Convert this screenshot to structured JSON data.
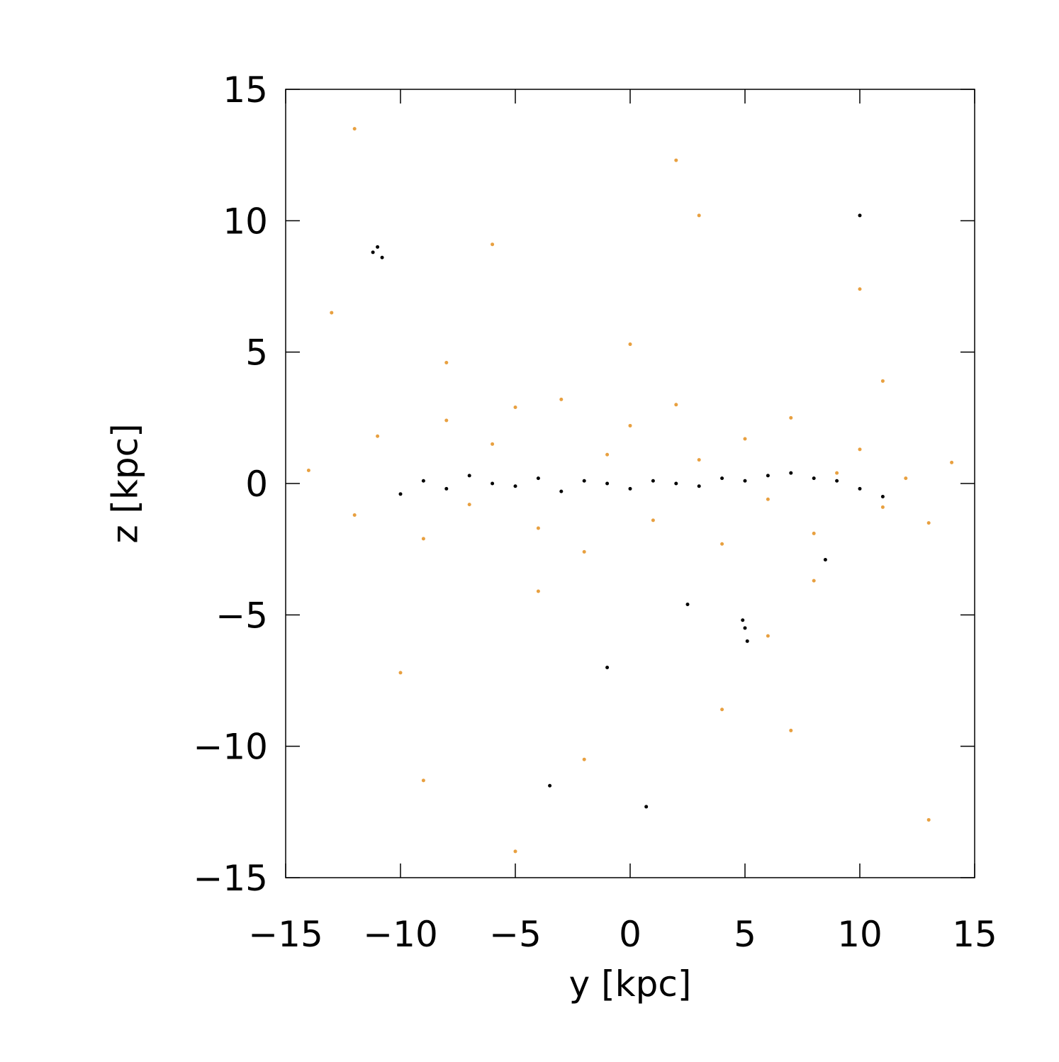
{
  "chart_data": {
    "type": "scatter",
    "xlabel": "y [kpc]",
    "ylabel": "z [kpc]",
    "xlim": [
      -15,
      15
    ],
    "ylim": [
      -15,
      15
    ],
    "xticks": [
      {
        "value": -15,
        "label": "−15"
      },
      {
        "value": -10,
        "label": "−10"
      },
      {
        "value": -5,
        "label": "−5"
      },
      0,
      5,
      10,
      15
    ],
    "yticks": [
      {
        "value": -15,
        "label": "−15"
      },
      {
        "value": -10,
        "label": "−10"
      },
      {
        "value": -5,
        "label": "−5"
      },
      0,
      5,
      10,
      15
    ],
    "series": [
      {
        "color": "#e8a040",
        "x": [
          -14,
          -12,
          -11,
          -9,
          -8,
          -7,
          -6,
          -5,
          -4,
          -3,
          -2,
          -1,
          0,
          1,
          2,
          3,
          4,
          5,
          6,
          7,
          8,
          9,
          10,
          11,
          12,
          13,
          14,
          -13,
          -10,
          -6,
          -2,
          2,
          6,
          10,
          13,
          -8,
          -4,
          0,
          4,
          8,
          -12,
          -5,
          3,
          11,
          -9,
          7
        ],
        "y": [
          0.5,
          -1.2,
          1.8,
          -2.1,
          2.4,
          -0.8,
          1.5,
          2.9,
          -1.7,
          3.2,
          -2.6,
          1.1,
          2.2,
          -1.4,
          3.0,
          0.9,
          -2.3,
          1.7,
          -0.6,
          2.5,
          -1.9,
          0.4,
          1.3,
          -0.9,
          0.2,
          -1.5,
          0.8,
          6.5,
          -7.2,
          9.1,
          -10.5,
          12.3,
          -5.8,
          7.4,
          -12.8,
          4.6,
          -4.1,
          5.3,
          -8.6,
          -3.7,
          13.5,
          -14.0,
          10.2,
          3.9,
          -11.3,
          -9.4
        ]
      },
      {
        "color": "#000000",
        "x": [
          -10,
          -9,
          -8,
          -7,
          -6,
          -5,
          -4,
          -3,
          -2,
          -1,
          0,
          1,
          2,
          3,
          4,
          5,
          6,
          7,
          8,
          9,
          10,
          11,
          -11.2,
          -11,
          -10.8,
          5,
          5.1,
          4.9,
          -3.5,
          0.7,
          8.5,
          10,
          -1,
          2.5
        ],
        "y": [
          -0.4,
          0.1,
          -0.2,
          0.3,
          0.0,
          -0.1,
          0.2,
          -0.3,
          0.1,
          0.0,
          -0.2,
          0.1,
          0.0,
          -0.1,
          0.2,
          0.1,
          0.3,
          0.4,
          0.2,
          0.1,
          -0.2,
          -0.5,
          8.8,
          9.0,
          8.6,
          -5.5,
          -6.0,
          -5.2,
          -11.5,
          -12.3,
          -2.9,
          10.2,
          -7.0,
          -4.6
        ]
      }
    ]
  }
}
